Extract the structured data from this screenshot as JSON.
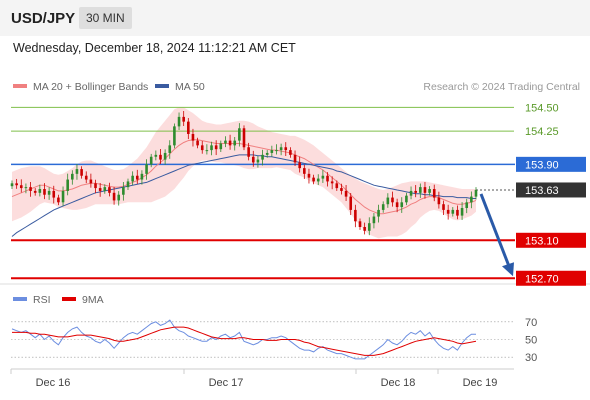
{
  "header": {
    "pair": "USD/JPY",
    "timeframe": "30 MIN",
    "timestamp": "Wednesday, December 18, 2024 11:12:21 AM CET"
  },
  "colors": {
    "ma20": "#f08080",
    "band_fill": "#fbd7d7",
    "ma50": "#3a5ba0",
    "resistance": "#2b6bd6",
    "support": "#e00000",
    "target_green": "#7fbf4a",
    "current_price": "#333333",
    "arrow": "#2a5aa8",
    "candle_up": "#2e8b2e",
    "candle_down": "#cc0000",
    "rsi": "#6c8ee0",
    "rsi_ma": "#e00000"
  },
  "chart_data": [
    {
      "type": "candlestick",
      "instrument": "USD/JPY",
      "timeframe": "30 MIN",
      "legend": {
        "position": "top-left",
        "items": [
          {
            "label": "MA 20 + Bollinger Bands",
            "color": "#f08080"
          },
          {
            "label": "MA 50",
            "color": "#3a5ba0"
          }
        ]
      },
      "credit": "Research © 2024 Trading Central",
      "ylim": [
        152.65,
        154.62
      ],
      "x_ticks": [
        "Dec 16",
        "Dec 17",
        "Dec 18",
        "Dec 19"
      ],
      "levels": [
        {
          "value": 154.5,
          "label": "154.50",
          "kind": "target"
        },
        {
          "value": 154.25,
          "label": "154.25",
          "kind": "target"
        },
        {
          "value": 153.9,
          "label": "153.90",
          "kind": "resistance"
        },
        {
          "value": 153.63,
          "label": "153.63",
          "kind": "current"
        },
        {
          "value": 153.1,
          "label": "153.10",
          "kind": "support"
        },
        {
          "value": 152.7,
          "label": "152.70",
          "kind": "support"
        }
      ],
      "projection": {
        "from": 153.63,
        "to": 152.7
      },
      "close_series": [
        153.7,
        153.68,
        153.65,
        153.66,
        153.62,
        153.6,
        153.64,
        153.58,
        153.62,
        153.55,
        153.5,
        153.62,
        153.74,
        153.8,
        153.85,
        153.78,
        153.74,
        153.7,
        153.65,
        153.62,
        153.66,
        153.6,
        153.52,
        153.58,
        153.66,
        153.72,
        153.78,
        153.74,
        153.8,
        153.9,
        153.98,
        154.0,
        153.95,
        154.02,
        154.1,
        154.3,
        154.4,
        154.35,
        154.22,
        154.15,
        154.1,
        154.05,
        154.05,
        154.1,
        154.06,
        154.12,
        154.15,
        154.1,
        154.15,
        154.28,
        154.08,
        153.98,
        153.92,
        153.95,
        154.0,
        154.02,
        154.05,
        154.05,
        154.08,
        154.05,
        154.0,
        153.92,
        153.86,
        153.8,
        153.76,
        153.72,
        153.75,
        153.78,
        153.72,
        153.7,
        153.65,
        153.62,
        153.56,
        153.42,
        153.3,
        153.24,
        153.2,
        153.28,
        153.35,
        153.42,
        153.48,
        153.55,
        153.5,
        153.45,
        153.5,
        153.57,
        153.62,
        153.6,
        153.66,
        153.6,
        153.64,
        153.55,
        153.48,
        153.42,
        153.38,
        153.42,
        153.36,
        153.44,
        153.5,
        153.56,
        153.63
      ],
      "ma20_series": [
        153.56,
        153.58,
        153.6,
        153.62,
        153.64,
        153.66,
        153.68,
        153.68,
        153.66,
        153.64,
        153.62,
        153.62,
        153.63,
        153.64,
        153.66,
        153.68,
        153.69,
        153.7,
        153.7,
        153.69,
        153.68,
        153.67,
        153.66,
        153.66,
        153.67,
        153.69,
        153.71,
        153.73,
        153.76,
        153.79,
        153.83,
        153.88,
        153.92,
        153.96,
        154.01,
        154.06,
        154.1,
        154.13,
        154.15,
        154.16,
        154.16,
        154.15,
        154.14,
        154.13,
        154.12,
        154.12,
        154.12,
        154.12,
        154.12,
        154.12,
        154.11,
        154.1,
        154.09,
        154.08,
        154.07,
        154.06,
        154.05,
        154.05,
        154.04,
        154.03,
        154.02,
        154.0,
        153.98,
        153.96,
        153.93,
        153.9,
        153.87,
        153.84,
        153.8,
        153.76,
        153.72,
        153.68,
        153.63,
        153.58,
        153.53,
        153.49,
        153.45,
        153.42,
        153.4,
        153.38,
        153.38,
        153.39,
        153.4,
        153.41,
        153.43,
        153.45,
        153.48,
        153.5,
        153.53,
        153.55,
        153.56,
        153.56,
        153.55,
        153.53,
        153.51,
        153.49,
        153.48,
        153.48,
        153.49,
        153.5,
        153.52
      ],
      "band_upper": [
        153.82,
        153.84,
        153.86,
        153.87,
        153.88,
        153.88,
        153.88,
        153.86,
        153.83,
        153.8,
        153.79,
        153.8,
        153.83,
        153.86,
        153.9,
        153.93,
        153.94,
        153.94,
        153.92,
        153.9,
        153.88,
        153.86,
        153.84,
        153.84,
        153.85,
        153.88,
        153.92,
        153.96,
        154.02,
        154.08,
        154.16,
        154.24,
        154.3,
        154.36,
        154.42,
        154.48,
        154.5,
        154.5,
        154.47,
        154.44,
        154.4,
        154.36,
        154.34,
        154.33,
        154.32,
        154.32,
        154.33,
        154.34,
        154.35,
        154.36,
        154.36,
        154.35,
        154.33,
        154.3,
        154.28,
        154.26,
        154.24,
        154.23,
        154.22,
        154.21,
        154.2,
        154.2,
        154.18,
        154.16,
        154.13,
        154.1,
        154.06,
        154.02,
        153.98,
        153.94,
        153.9,
        153.86,
        153.82,
        153.78,
        153.75,
        153.72,
        153.7,
        153.68,
        153.66,
        153.64,
        153.63,
        153.64,
        153.66,
        153.68,
        153.7,
        153.71,
        153.72,
        153.72,
        153.72,
        153.72,
        153.71,
        153.7,
        153.69,
        153.68,
        153.67,
        153.66,
        153.65,
        153.64,
        153.64,
        153.64,
        153.64
      ],
      "band_lower": [
        153.3,
        153.32,
        153.34,
        153.37,
        153.4,
        153.44,
        153.48,
        153.5,
        153.49,
        153.48,
        153.45,
        153.44,
        153.43,
        153.42,
        153.42,
        153.43,
        153.44,
        153.46,
        153.48,
        153.48,
        153.48,
        153.48,
        153.48,
        153.48,
        153.49,
        153.5,
        153.5,
        153.5,
        153.5,
        153.5,
        153.5,
        153.52,
        153.54,
        153.56,
        153.6,
        153.64,
        153.7,
        153.76,
        153.83,
        153.88,
        153.92,
        153.94,
        153.94,
        153.93,
        153.92,
        153.92,
        153.91,
        153.9,
        153.89,
        153.88,
        153.86,
        153.85,
        153.85,
        153.86,
        153.86,
        153.86,
        153.86,
        153.87,
        153.86,
        153.85,
        153.84,
        153.8,
        153.78,
        153.76,
        153.73,
        153.7,
        153.68,
        153.66,
        153.62,
        153.58,
        153.54,
        153.5,
        153.44,
        153.38,
        153.31,
        153.26,
        153.2,
        153.16,
        153.14,
        153.12,
        153.13,
        153.14,
        153.14,
        153.14,
        153.16,
        153.19,
        153.24,
        153.28,
        153.34,
        153.38,
        153.41,
        153.42,
        153.41,
        153.38,
        153.35,
        153.32,
        153.31,
        153.32,
        153.34,
        153.36,
        153.4
      ],
      "ma50_series": [
        153.14,
        153.18,
        153.21,
        153.24,
        153.27,
        153.3,
        153.33,
        153.36,
        153.39,
        153.42,
        153.44,
        153.46,
        153.48,
        153.5,
        153.52,
        153.54,
        153.56,
        153.58,
        153.6,
        153.61,
        153.62,
        153.63,
        153.64,
        153.65,
        153.66,
        153.67,
        153.68,
        153.69,
        153.7,
        153.71,
        153.73,
        153.75,
        153.77,
        153.79,
        153.81,
        153.83,
        153.85,
        153.87,
        153.89,
        153.9,
        153.91,
        153.92,
        153.93,
        153.94,
        153.95,
        153.96,
        153.97,
        153.98,
        153.99,
        154.0,
        154.0,
        154.0,
        154.0,
        153.99,
        153.99,
        153.98,
        153.98,
        153.97,
        153.96,
        153.95,
        153.94,
        153.93,
        153.92,
        153.91,
        153.9,
        153.89,
        153.88,
        153.87,
        153.86,
        153.85,
        153.83,
        153.82,
        153.8,
        153.78,
        153.76,
        153.74,
        153.72,
        153.7,
        153.68,
        153.67,
        153.66,
        153.65,
        153.64,
        153.63,
        153.62,
        153.61,
        153.6,
        153.59,
        153.59,
        153.58,
        153.58,
        153.57,
        153.57,
        153.56,
        153.56,
        153.56,
        153.55,
        153.55,
        153.55,
        153.54,
        153.54
      ]
    },
    {
      "type": "line",
      "legend": {
        "position": "top-left",
        "items": [
          {
            "label": "RSI",
            "color": "#6c8ee0"
          },
          {
            "label": "9MA",
            "color": "#e00000"
          }
        ]
      },
      "ylim": [
        20,
        80
      ],
      "y_ticks": [
        "70",
        "50",
        "30"
      ],
      "rsi_series": [
        62,
        60,
        58,
        60,
        56,
        52,
        56,
        50,
        54,
        48,
        44,
        52,
        58,
        62,
        64,
        58,
        54,
        52,
        48,
        46,
        50,
        46,
        40,
        46,
        52,
        56,
        58,
        56,
        60,
        64,
        68,
        70,
        66,
        68,
        72,
        64,
        60,
        58,
        54,
        52,
        50,
        48,
        48,
        52,
        50,
        54,
        56,
        52,
        54,
        58,
        48,
        46,
        44,
        46,
        50,
        50,
        52,
        52,
        54,
        52,
        48,
        44,
        40,
        38,
        38,
        36,
        40,
        42,
        38,
        36,
        34,
        34,
        32,
        30,
        28,
        28,
        28,
        32,
        36,
        40,
        44,
        50,
        46,
        44,
        48,
        54,
        58,
        56,
        60,
        54,
        58,
        50,
        44,
        40,
        38,
        42,
        38,
        46,
        52,
        56,
        56
      ],
      "ma9_series": [
        58,
        58,
        58,
        58,
        57,
        57,
        56,
        56,
        55,
        54,
        53,
        53,
        53,
        54,
        55,
        55,
        55,
        55,
        54,
        53,
        52,
        51,
        49,
        48,
        48,
        49,
        50,
        51,
        53,
        55,
        57,
        59,
        61,
        62,
        63,
        64,
        64,
        64,
        63,
        61,
        59,
        57,
        55,
        53,
        52,
        51,
        51,
        51,
        51,
        52,
        52,
        51,
        50,
        50,
        50,
        49,
        49,
        49,
        50,
        50,
        50,
        50,
        49,
        47,
        46,
        44,
        42,
        41,
        40,
        39,
        38,
        37,
        36,
        35,
        34,
        33,
        32,
        32,
        32,
        33,
        34,
        36,
        38,
        40,
        42,
        44,
        46,
        48,
        49,
        50,
        51,
        52,
        51,
        50,
        49,
        48,
        46,
        45,
        46,
        47,
        48
      ]
    }
  ]
}
